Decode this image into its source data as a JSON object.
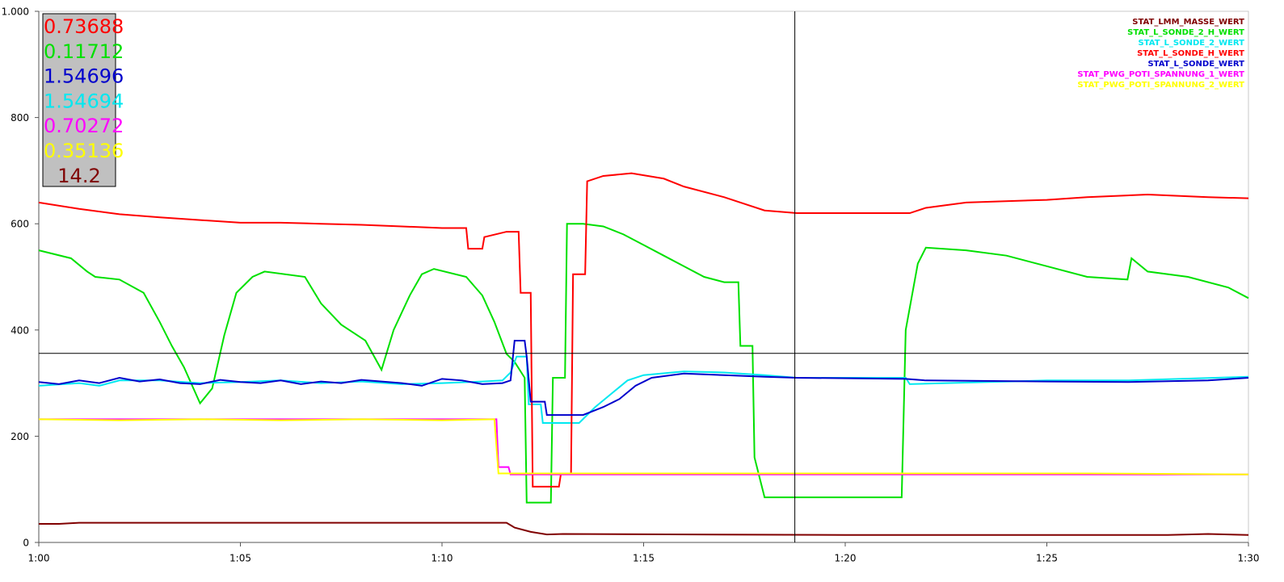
{
  "chart_data": {
    "type": "line",
    "xlim": [
      60,
      90
    ],
    "xticks": [
      {
        "value": 60,
        "label": "1:00"
      },
      {
        "value": 65,
        "label": "1:05"
      },
      {
        "value": 70,
        "label": "1:10"
      },
      {
        "value": 75,
        "label": "1:15"
      },
      {
        "value": 80,
        "label": "1:20"
      },
      {
        "value": 85,
        "label": "1:25"
      },
      {
        "value": 90,
        "label": "1:30"
      }
    ],
    "ylim": [
      0,
      1000
    ],
    "yticks": [
      0,
      200,
      400,
      600,
      800,
      {
        "value": 1000,
        "label": "1.000"
      }
    ],
    "cursor": {
      "x": 78.75,
      "y": 356
    },
    "readouts": [
      {
        "text": "0.73688",
        "color": "#ff0000"
      },
      {
        "text": "0.11712",
        "color": "#00e000"
      },
      {
        "text": "1.54696",
        "color": "#0000cc"
      },
      {
        "text": "1.54694",
        "color": "#00e8f0"
      },
      {
        "text": "0.70272",
        "color": "#ff00ff"
      },
      {
        "text": "0.35136",
        "color": "#ffff00"
      },
      {
        "text": "14.2",
        "color": "#800000"
      }
    ],
    "series": [
      {
        "name": "STAT_LMM_MASSE_WERT",
        "color": "#800000",
        "x": [
          60,
          60.5,
          61,
          71.6,
          71.8,
          72.2,
          72.6,
          73,
          80,
          88,
          89,
          90
        ],
        "values": [
          35,
          35,
          37,
          37,
          28,
          20,
          15,
          16,
          14,
          14,
          16,
          14
        ]
      },
      {
        "name": "STAT_L_SONDE_2_H_WERT",
        "color": "#00e000",
        "x": [
          60,
          60.8,
          61.2,
          61.4,
          62,
          62.6,
          63,
          63.3,
          63.6,
          64,
          64.3,
          64.6,
          64.9,
          65.3,
          65.6,
          66.6,
          67,
          67.5,
          68.1,
          68.5,
          68.8,
          69.2,
          69.5,
          69.8,
          70.6,
          71,
          71.3,
          71.6,
          71.8,
          72.05,
          72.1,
          72.7,
          72.75,
          73.05,
          73.1,
          73.5,
          74,
          74.5,
          75,
          75.5,
          76,
          76.5,
          77,
          77.35,
          77.4,
          77.7,
          77.75,
          78,
          78.8,
          81.4,
          81.5,
          81.8,
          82,
          83,
          84,
          85,
          86,
          87,
          87.1,
          87.5,
          88.5,
          89.5,
          90
        ],
        "values": [
          550,
          535,
          510,
          500,
          495,
          470,
          415,
          370,
          330,
          262,
          290,
          390,
          470,
          500,
          510,
          500,
          450,
          410,
          380,
          325,
          400,
          465,
          505,
          515,
          500,
          465,
          415,
          355,
          340,
          310,
          75,
          75,
          310,
          310,
          600,
          600,
          595,
          580,
          560,
          540,
          520,
          500,
          490,
          490,
          370,
          370,
          160,
          85,
          85,
          85,
          400,
          525,
          555,
          550,
          540,
          520,
          500,
          495,
          535,
          510,
          500,
          480,
          460
        ]
      },
      {
        "name": "STAT_L_SONDE_2_WERT",
        "color": "#00e8f0",
        "x": [
          60,
          61,
          61.5,
          62,
          63,
          64,
          65,
          66,
          67,
          68,
          69,
          70,
          71,
          71.5,
          71.7,
          71.85,
          72.1,
          72.15,
          72.45,
          72.5,
          73.4,
          73.8,
          74.2,
          74.6,
          75,
          76,
          77,
          78,
          78.8,
          81.5,
          81.6,
          82.5,
          85,
          87,
          90
        ],
        "values": [
          295,
          300,
          295,
          305,
          305,
          300,
          302,
          305,
          300,
          303,
          298,
          300,
          303,
          305,
          320,
          350,
          350,
          260,
          260,
          225,
          225,
          255,
          280,
          305,
          315,
          322,
          320,
          315,
          310,
          310,
          298,
          300,
          305,
          305,
          312
        ]
      },
      {
        "name": "STAT_L_SONDE_H_WERT",
        "color": "#ff0000",
        "x": [
          60,
          61,
          62,
          63,
          64,
          65,
          66,
          67,
          68,
          69,
          70,
          70.6,
          70.65,
          71,
          71.05,
          71.6,
          71.9,
          71.95,
          72.2,
          72.25,
          72.9,
          72.95,
          73.2,
          73.25,
          73.55,
          73.6,
          74,
          74.7,
          75.5,
          76,
          77,
          78,
          78.8,
          81.6,
          82,
          83,
          85,
          86,
          87.5,
          89,
          90
        ],
        "values": [
          640,
          628,
          618,
          612,
          607,
          602,
          602,
          600,
          598,
          595,
          592,
          592,
          553,
          553,
          575,
          585,
          585,
          470,
          470,
          105,
          105,
          130,
          130,
          505,
          505,
          680,
          690,
          695,
          685,
          670,
          650,
          625,
          620,
          620,
          630,
          640,
          645,
          650,
          655,
          650,
          648
        ]
      },
      {
        "name": "STAT_L_SONDE_WERT",
        "color": "#0000cc",
        "x": [
          60,
          60.5,
          61,
          61.5,
          62,
          62.5,
          63,
          63.5,
          64,
          64.5,
          65,
          65.5,
          66,
          66.5,
          67,
          67.5,
          68,
          68.5,
          69,
          69.5,
          70,
          70.5,
          71,
          71.5,
          71.7,
          71.8,
          72.05,
          72.1,
          72.2,
          72.55,
          72.6,
          73.5,
          74,
          74.4,
          74.8,
          75.2,
          76,
          77,
          78,
          78.8,
          81.5,
          82,
          85,
          87,
          89,
          90
        ],
        "values": [
          302,
          298,
          305,
          300,
          310,
          303,
          307,
          300,
          298,
          306,
          302,
          300,
          305,
          298,
          303,
          300,
          306,
          303,
          300,
          295,
          308,
          305,
          298,
          300,
          305,
          380,
          380,
          350,
          265,
          265,
          240,
          240,
          255,
          270,
          295,
          310,
          318,
          315,
          312,
          310,
          308,
          305,
          303,
          302,
          305,
          310
        ]
      },
      {
        "name": "STAT_PWG_POTI_SPANNUNG_1_WERT",
        "color": "#ff00ff",
        "x": [
          60,
          71.35,
          71.4,
          71.65,
          71.7,
          90
        ],
        "values": [
          232,
          232,
          142,
          142,
          128,
          128
        ]
      },
      {
        "name": "STAT_PWG_POTI_SPANNUNG_2_WERT",
        "color": "#ffff00",
        "x": [
          60,
          62,
          64,
          66,
          68,
          70,
          71.3,
          71.4,
          74,
          78,
          82,
          86,
          90
        ],
        "values": [
          232,
          230,
          232,
          230,
          232,
          230,
          232,
          130,
          130,
          130,
          130,
          130,
          128
        ]
      }
    ]
  }
}
